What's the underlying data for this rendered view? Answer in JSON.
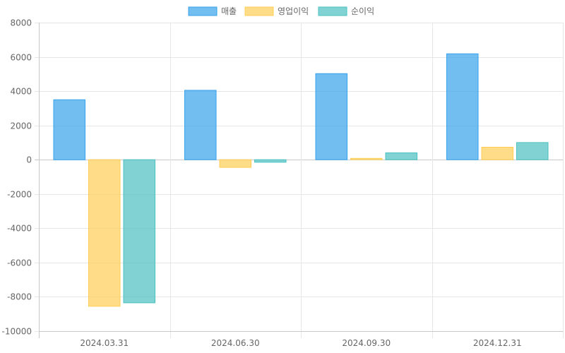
{
  "chart_data": {
    "type": "bar",
    "categories": [
      "2024.03.31",
      "2024.06.30",
      "2024.09.30",
      "2024.12.31"
    ],
    "series": [
      {
        "name": "매출",
        "values": [
          3500,
          4050,
          5020,
          6180
        ],
        "fill": "#36a2eb",
        "fill_opacity": 0.7,
        "stroke": "#36a2eb"
      },
      {
        "name": "영업이익",
        "values": [
          -8550,
          -450,
          80,
          730
        ],
        "fill": "#ffcd56",
        "fill_opacity": 0.7,
        "stroke": "#ffcd56"
      },
      {
        "name": "순이익",
        "values": [
          -8350,
          -150,
          400,
          1000
        ],
        "fill": "#4bc0c0",
        "fill_opacity": 0.7,
        "stroke": "#4bc0c0"
      }
    ],
    "ylim": [
      -10000,
      8000
    ],
    "yticks": [
      8000,
      6000,
      4000,
      2000,
      0,
      -2000,
      -4000,
      -6000,
      -8000,
      -10000
    ],
    "grid": true,
    "legend_position": "top-center"
  }
}
